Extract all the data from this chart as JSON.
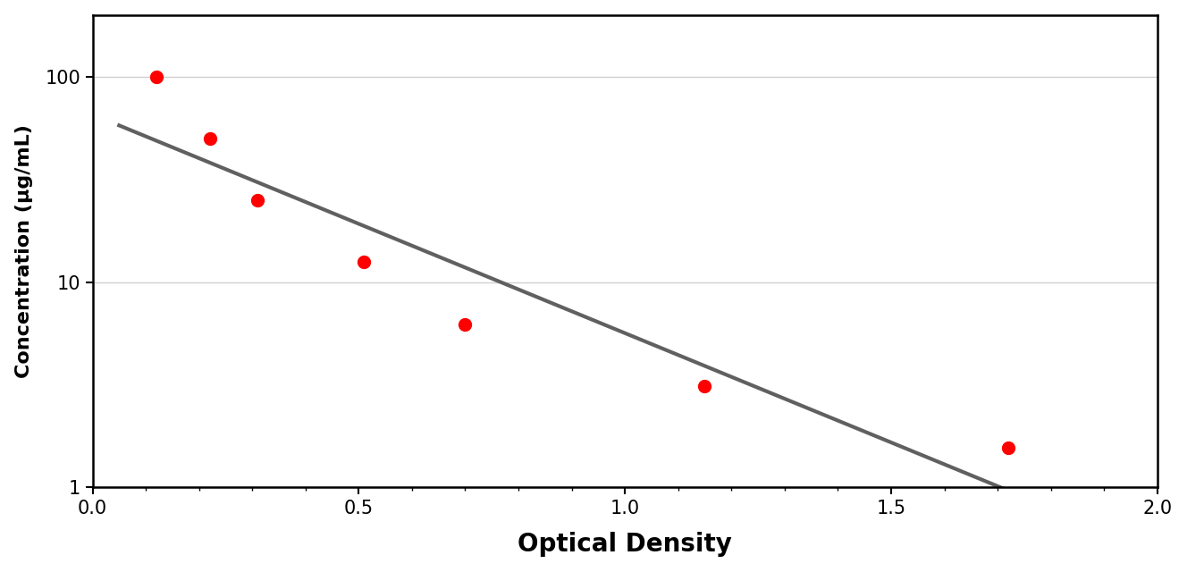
{
  "x_data": [
    0.12,
    0.22,
    0.31,
    0.51,
    0.7,
    1.15,
    1.72
  ],
  "y_data": [
    100,
    50,
    25,
    12.5,
    6.25,
    3.125,
    1.5625
  ],
  "point_color": "#FF0000",
  "curve_color": "#606060",
  "xlabel": "Optical Density",
  "ylabel": "Concentration (μg/mL)",
  "xlim": [
    0,
    2
  ],
  "ylim": [
    1,
    200
  ],
  "xticks": [
    0,
    0.5,
    1.0,
    1.5,
    2.0
  ],
  "yticks_log": [
    1,
    10,
    100
  ],
  "grid_color": "#d0d0d0",
  "point_size": 100,
  "curve_linewidth": 3.0,
  "xlabel_fontsize": 20,
  "ylabel_fontsize": 16,
  "tick_fontsize": 15,
  "background_color": "#ffffff"
}
